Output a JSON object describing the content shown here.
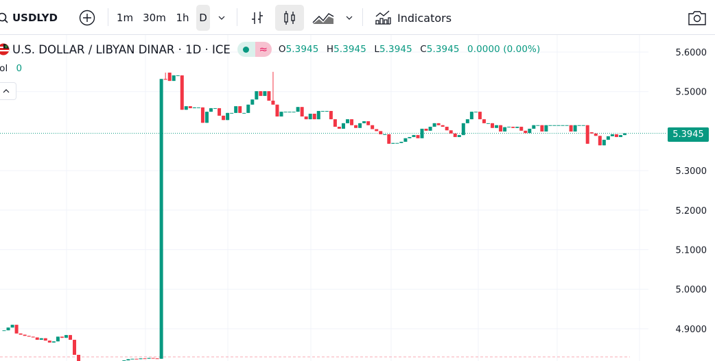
{
  "toolbar": {
    "symbol": "USDLYD",
    "intervals": [
      "1m",
      "30m",
      "1h",
      "D"
    ],
    "active_interval": "D",
    "indicators_label": "Indicators",
    "icons": [
      "search-icon",
      "add-symbol-icon",
      "chevron-down-icon",
      "bar-chart-icon",
      "candles-icon",
      "area-chart-icon",
      "chevron-down-icon",
      "indicators-icon",
      "camera-icon"
    ]
  },
  "legend": {
    "title": "U.S. DOLLAR / LIBYAN DINAR · 1D · ICE",
    "o_label": "O",
    "o": "5.3945",
    "h_label": "H",
    "h": "5.3945",
    "l_label": "L",
    "l": "5.3945",
    "c_label": "C",
    "c": "5.3945",
    "change": "0.0000 (0.00%)",
    "vol_label": "Vol",
    "vol_value": "0",
    "badge_icons": [
      "market-open-dot-icon",
      "delayed-data-icon"
    ]
  },
  "price_tag": "5.3945",
  "colors": {
    "up": "#089981",
    "down": "#f23645",
    "grid": "#f0f3fa",
    "text": "#131722"
  },
  "chart_data": {
    "type": "candlestick",
    "title": "U.S. DOLLAR / LIBYAN DINAR · 1D · ICE",
    "y_ticks": [
      "5.6000",
      "5.5000",
      "5.3000",
      "5.2000",
      "5.1000",
      "5.0000",
      "4.9000"
    ],
    "ylim": [
      4.82,
      5.64
    ],
    "grid": true,
    "last_price": 5.3945,
    "close": [
      4.896,
      4.903,
      4.91,
      4.888,
      4.885,
      4.882,
      4.88,
      4.878,
      4.872,
      4.876,
      4.87,
      4.865,
      4.868,
      4.88,
      4.877,
      4.884,
      4.872,
      4.834,
      4.818,
      4.8,
      4.79,
      4.79,
      4.8,
      4.79,
      4.78,
      4.79,
      4.8,
      4.81,
      4.815,
      4.82,
      4.823,
      4.824,
      4.823,
      4.825,
      4.824,
      4.826,
      4.825,
      4.824,
      5.532,
      5.53,
      5.527,
      5.541,
      5.541,
      5.454,
      5.463,
      5.458,
      5.46,
      5.46,
      5.421,
      5.449,
      5.458,
      5.458,
      5.439,
      5.428,
      5.446,
      5.446,
      5.463,
      5.446,
      5.446,
      5.467,
      5.48,
      5.501,
      5.489,
      5.501,
      5.477,
      5.467,
      5.437,
      5.449,
      5.449,
      5.449,
      5.449,
      5.461,
      5.437,
      5.43,
      5.444,
      5.43,
      5.451,
      5.451,
      5.451,
      5.43,
      5.411,
      5.406,
      5.42,
      5.43,
      5.415,
      5.408,
      5.42,
      5.425,
      5.415,
      5.405,
      5.4,
      5.392,
      5.392,
      5.368,
      5.37,
      5.37,
      5.373,
      5.382,
      5.385,
      5.39,
      5.382,
      5.406,
      5.401,
      5.411,
      5.42,
      5.415,
      5.411,
      5.402,
      5.394,
      5.385,
      5.39,
      5.42,
      5.43,
      5.449,
      5.449,
      5.43,
      5.42,
      5.42,
      5.408,
      5.415,
      5.399,
      5.41,
      5.411,
      5.408,
      5.411,
      5.401,
      5.395,
      5.406,
      5.415,
      5.415,
      5.399,
      5.415,
      5.415,
      5.415,
      5.415,
      5.415,
      5.415,
      5.399,
      5.415,
      5.415,
      5.415,
      5.368,
      5.394,
      5.388,
      5.364,
      5.378,
      5.387,
      5.392,
      5.385,
      5.39,
      5.3945
    ],
    "open_overrides": {
      "40": 5.548,
      "142": 5.397
    },
    "high_overrides": {
      "39": 5.548,
      "65": 5.55,
      "101": 5.406
    }
  }
}
